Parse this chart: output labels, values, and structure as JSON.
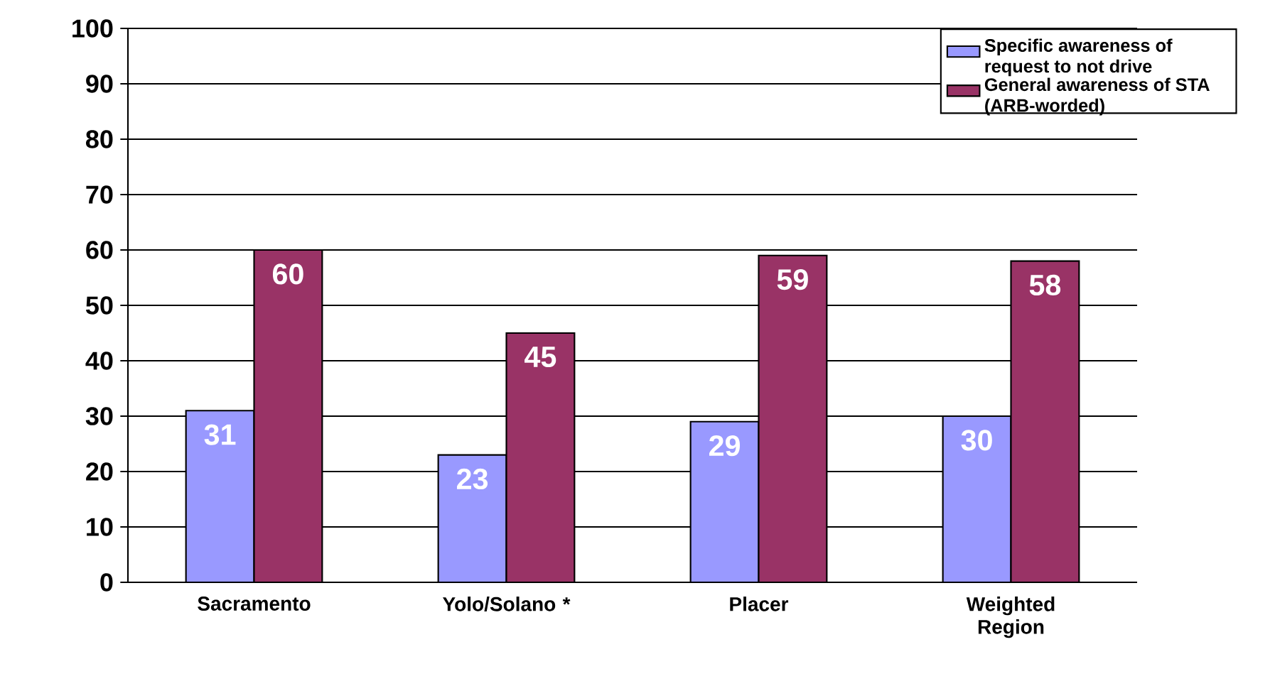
{
  "chart_data": {
    "type": "bar",
    "categories": [
      "Sacramento",
      "Yolo/Solano *",
      "Placer",
      "Weighted Region"
    ],
    "series": [
      {
        "name": "Specific awareness of request to not drive",
        "color": "#9999ff",
        "values": [
          31,
          23,
          29,
          30
        ]
      },
      {
        "name": "General awareness of STA (ARB-worded)",
        "color": "#993366",
        "values": [
          60,
          45,
          59,
          58
        ]
      }
    ],
    "ylim": [
      0,
      100
    ],
    "yticks": [
      0,
      10,
      20,
      30,
      40,
      50,
      60,
      70,
      80,
      90,
      100
    ],
    "grid": "y",
    "legend": "top right",
    "data_labels": true
  }
}
